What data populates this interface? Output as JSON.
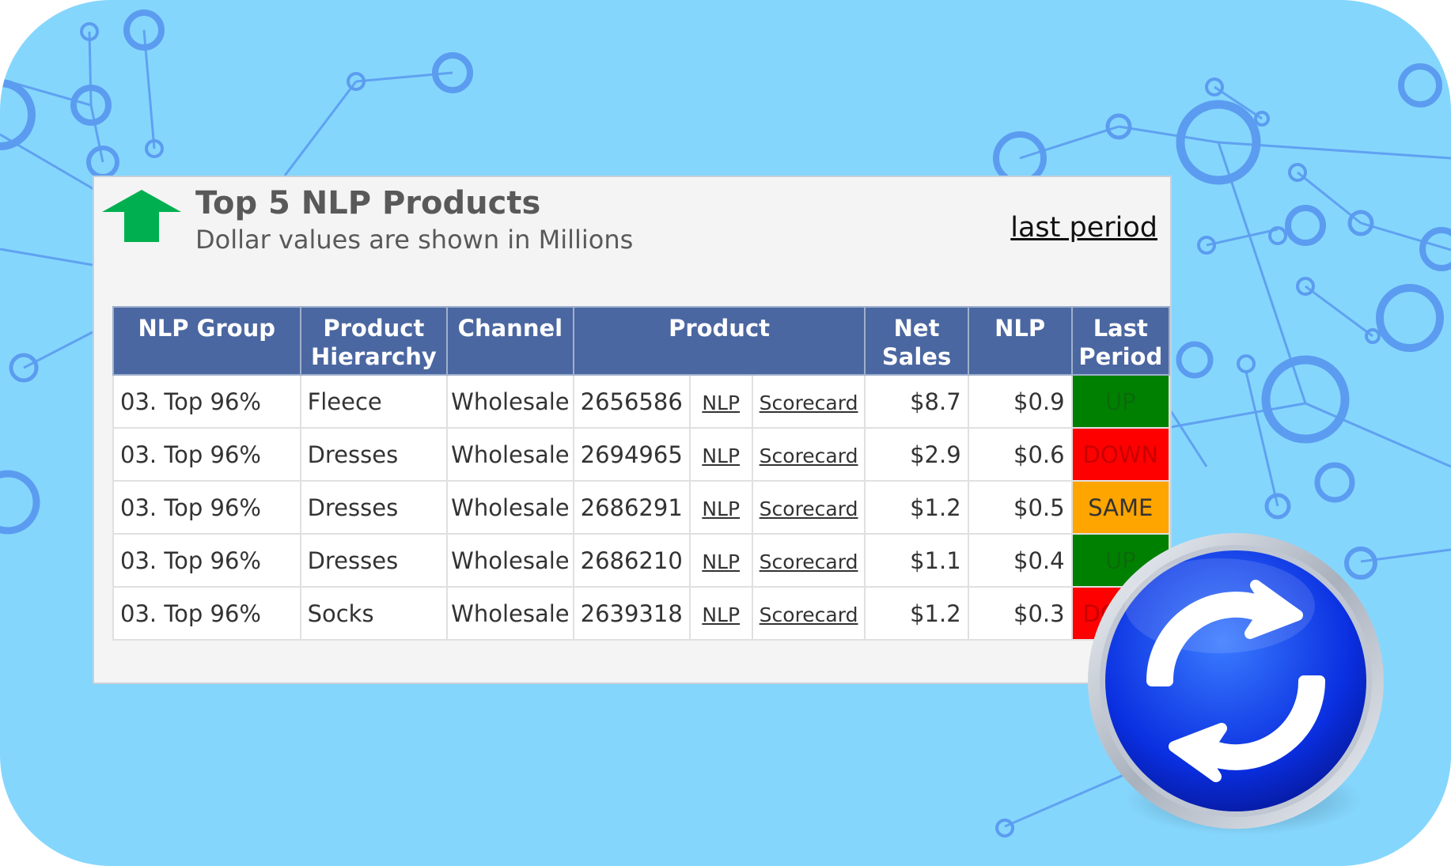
{
  "widget": {
    "title": "Top 5 NLP Products",
    "subtitle": "Dollar values are shown in Millions",
    "last_period_link": "last period"
  },
  "table": {
    "headers": {
      "nlp_group": "NLP Group",
      "product_hierarchy_1": "Product",
      "product_hierarchy_2": "Hierarchy",
      "channel": "Channel",
      "product": "Product",
      "net_sales_1": "Net",
      "net_sales_2": "Sales",
      "nlp": "NLP",
      "last_period_1": "Last",
      "last_period_2": "Period"
    },
    "rows": [
      {
        "group": "03. Top 96%",
        "hierarchy": "Fleece",
        "channel": "Wholesale",
        "product": "2656586",
        "nlp_link": "NLP",
        "scorecard_link": "Scorecard",
        "net_sales": "$8.7",
        "nlp": "$0.9",
        "status": "UP",
        "status_color": "#008000"
      },
      {
        "group": "03. Top 96%",
        "hierarchy": "Dresses",
        "channel": "Wholesale",
        "product": "2694965",
        "nlp_link": "NLP",
        "scorecard_link": "Scorecard",
        "net_sales": "$2.9",
        "nlp": "$0.6",
        "status": "DOWN",
        "status_color": "#ff0000"
      },
      {
        "group": "03. Top 96%",
        "hierarchy": "Dresses",
        "channel": "Wholesale",
        "product": "2686291",
        "nlp_link": "NLP",
        "scorecard_link": "Scorecard",
        "net_sales": "$1.2",
        "nlp": "$0.5",
        "status": "SAME",
        "status_color": "#ffa500"
      },
      {
        "group": "03. Top 96%",
        "hierarchy": "Dresses",
        "channel": "Wholesale",
        "product": "2686210",
        "nlp_link": "NLP",
        "scorecard_link": "Scorecard",
        "net_sales": "$1.1",
        "nlp": "$0.4",
        "status": "UP",
        "status_color": "#008000"
      },
      {
        "group": "03. Top 96%",
        "hierarchy": "Socks",
        "channel": "Wholesale",
        "product": "2639318",
        "nlp_link": "NLP",
        "scorecard_link": "Scorecard",
        "net_sales": "$1.2",
        "nlp": "$0.3",
        "status": "DOWN",
        "status_color": "#ff0000"
      }
    ]
  },
  "icons": {
    "trend": "green-up-arrow-icon",
    "refresh": "refresh-icon"
  },
  "colors": {
    "background": "#85d6fd",
    "network": "#5b9cf0",
    "header": "#4b67a1",
    "up": "#008000",
    "down": "#ff0000",
    "same": "#ffa500",
    "arrow": "#00b050"
  }
}
